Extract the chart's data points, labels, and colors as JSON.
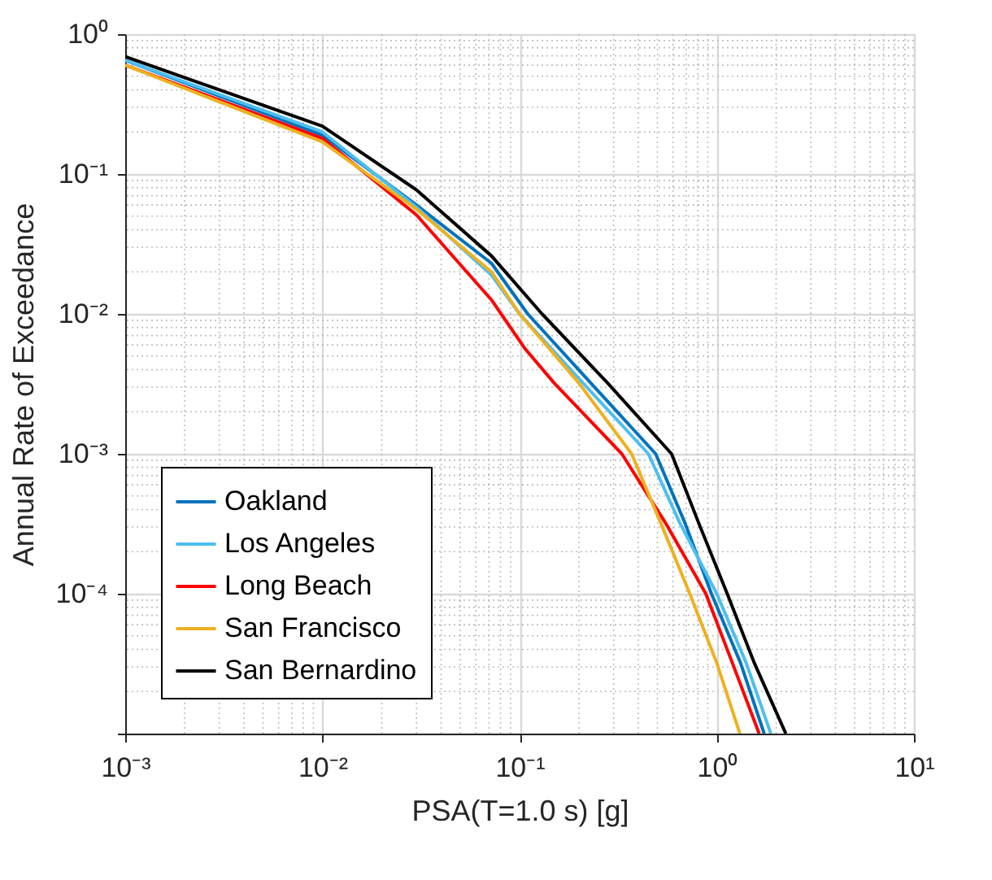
{
  "chart_data": {
    "type": "line",
    "xlabel": "PSA(T=1.0 s) [g]",
    "ylabel": "Annual Rate of Exceedance",
    "xlim": [
      0.001,
      10
    ],
    "ylim": [
      1e-05,
      1
    ],
    "xticks": [
      {
        "value": 0.001,
        "label": "10⁻³"
      },
      {
        "value": 0.01,
        "label": "10⁻²"
      },
      {
        "value": 0.1,
        "label": "10⁻¹"
      },
      {
        "value": 1,
        "label": "10⁰"
      },
      {
        "value": 10,
        "label": "10¹"
      }
    ],
    "yticks": [
      {
        "value": 1e-05,
        "label": null
      },
      {
        "value": 0.0001,
        "label": "10⁻⁴"
      },
      {
        "value": 0.001,
        "label": "10⁻³"
      },
      {
        "value": 0.01,
        "label": "10⁻²"
      },
      {
        "value": 0.1,
        "label": "10⁻¹"
      },
      {
        "value": 1,
        "label": "10⁰"
      }
    ],
    "log": "xy",
    "grid": true,
    "legend": "bottom left",
    "series": [
      {
        "name": "Oakland",
        "color": "#0072bd",
        "x": [
          0.001,
          0.01,
          0.03,
          0.072,
          0.11,
          0.23,
          0.49,
          0.69,
          0.94,
          1.32,
          1.74
        ],
        "values": [
          0.65,
          0.19,
          0.06,
          0.023,
          0.01,
          0.0032,
          0.001,
          0.00032,
          0.0001,
          3.2e-05,
          1e-05
        ]
      },
      {
        "name": "Los Angeles",
        "color": "#4dbeee",
        "x": [
          0.001,
          0.01,
          0.03,
          0.072,
          0.1,
          0.21,
          0.45,
          0.65,
          1.0,
          1.41,
          1.88
        ],
        "values": [
          0.65,
          0.2,
          0.058,
          0.019,
          0.01,
          0.0032,
          0.001,
          0.00032,
          0.0001,
          3.2e-05,
          1e-05
        ]
      },
      {
        "name": "Long Beach",
        "color": "#ff0000",
        "x": [
          0.001,
          0.01,
          0.03,
          0.072,
          0.107,
          0.15,
          0.33,
          0.55,
          0.88,
          1.2,
          1.64
        ],
        "values": [
          0.6,
          0.18,
          0.051,
          0.0126,
          0.0056,
          0.0032,
          0.001,
          0.00032,
          0.0001,
          3.2e-05,
          1e-05
        ]
      },
      {
        "name": "San Francisco",
        "color": "#edb120",
        "x": [
          0.001,
          0.01,
          0.03,
          0.072,
          0.1,
          0.2,
          0.37,
          0.52,
          0.73,
          1.0,
          1.31
        ],
        "values": [
          0.6,
          0.17,
          0.056,
          0.02,
          0.01,
          0.0032,
          0.001,
          0.00032,
          0.0001,
          3.2e-05,
          1e-05
        ]
      },
      {
        "name": "San Bernardino",
        "color": "#000000",
        "x": [
          0.001,
          0.01,
          0.03,
          0.072,
          0.13,
          0.28,
          0.59,
          0.81,
          1.13,
          1.55,
          2.24
        ],
        "values": [
          0.69,
          0.22,
          0.077,
          0.026,
          0.01,
          0.0032,
          0.001,
          0.00032,
          0.0001,
          3.2e-05,
          1e-05
        ]
      }
    ]
  }
}
